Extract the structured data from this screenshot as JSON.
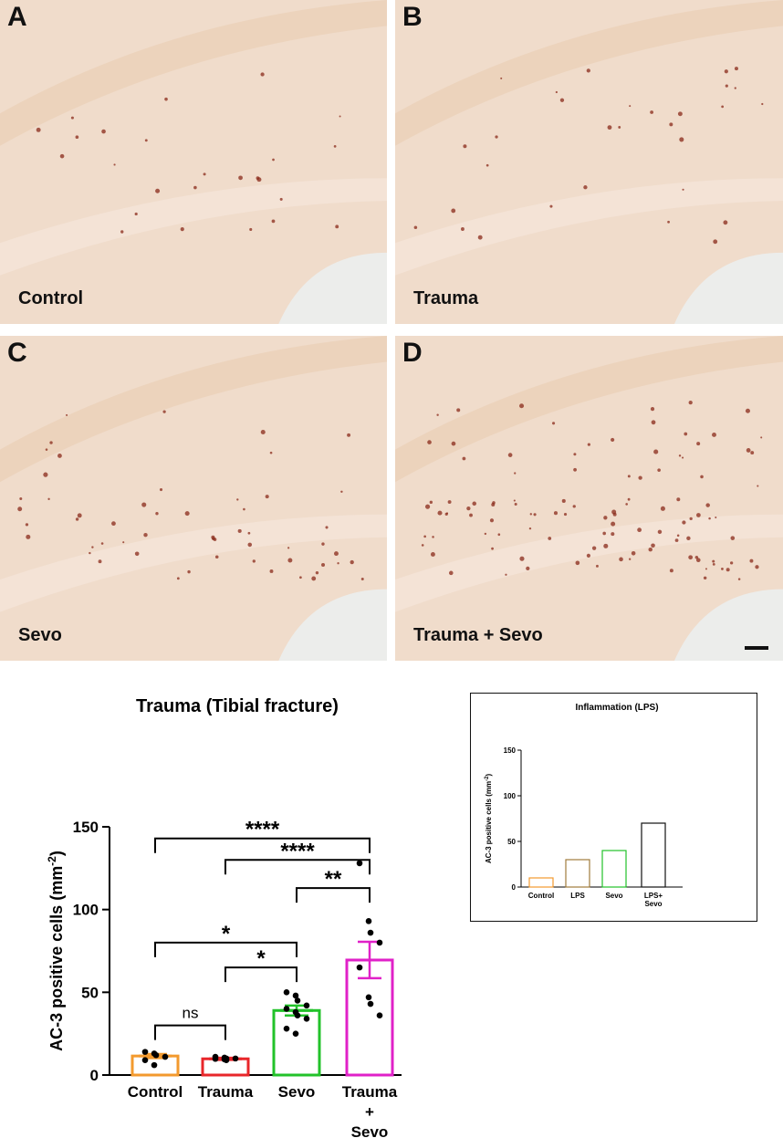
{
  "panels": [
    {
      "letter": "A",
      "label": "Control"
    },
    {
      "letter": "B",
      "label": "Trauma"
    },
    {
      "letter": "C",
      "label": "Sevo"
    },
    {
      "letter": "D",
      "label": "Trauma + Sevo"
    }
  ],
  "colors": {
    "tissue_base": "#f0dccb",
    "stain": "#8a2a1a",
    "control": "#f39a2e",
    "trauma": "#e8262a",
    "sevo": "#22c22a",
    "trauma_sevo": "#e021c8",
    "inset_lps": "#a07b3c"
  },
  "chart_data": [
    {
      "type": "bar",
      "title": "Trauma (Tibial fracture)",
      "ylabel": "AC-3 positive cells (mm",
      "ylabel_superscript": "-2",
      "ylabel_close": ")",
      "ylim": [
        0,
        150
      ],
      "yticks": [
        "0",
        "50",
        "100",
        "150"
      ],
      "categories": [
        {
          "lines": [
            "Control"
          ]
        },
        {
          "lines": [
            "Trauma"
          ]
        },
        {
          "lines": [
            "Sevo"
          ]
        },
        {
          "lines": [
            "Trauma",
            "+",
            "Sevo"
          ]
        }
      ],
      "values": [
        11.5,
        9.8,
        39.0,
        69.5
      ],
      "sem": [
        1.2,
        0.6,
        3.0,
        11.0
      ],
      "points": [
        [
          14,
          13,
          12,
          11,
          9,
          6
        ],
        [
          11,
          10.5,
          10,
          10,
          9.8,
          9.5,
          9
        ],
        [
          50,
          48,
          45,
          42,
          40,
          38,
          36,
          34,
          28,
          25
        ],
        [
          128,
          93,
          86,
          80,
          65,
          47,
          43,
          36
        ]
      ],
      "significance": [
        {
          "from": 0,
          "to": 3,
          "label": "****",
          "y": 143
        },
        {
          "from": 1,
          "to": 3,
          "label": "****",
          "y": 130
        },
        {
          "from": 2,
          "to": 3,
          "label": "**",
          "y": 113
        },
        {
          "from": 0,
          "to": 2,
          "label": "*",
          "y": 80
        },
        {
          "from": 1,
          "to": 2,
          "label": "*",
          "y": 65
        },
        {
          "from": 0,
          "to": 1,
          "label": "ns",
          "y": 30
        }
      ]
    },
    {
      "type": "bar",
      "title": "Inflammation (LPS)",
      "ylabel": "AC-3 positive cells (mm",
      "ylabel_superscript": "-2",
      "ylabel_close": ")",
      "ylim": [
        0,
        150
      ],
      "yticks": [
        "0",
        "50",
        "100",
        "150"
      ],
      "categories": [
        {
          "lines": [
            "Control"
          ]
        },
        {
          "lines": [
            "LPS"
          ]
        },
        {
          "lines": [
            "Sevo"
          ]
        },
        {
          "lines": [
            "LPS+",
            "Sevo"
          ]
        }
      ],
      "values": [
        10,
        30,
        40,
        70
      ]
    }
  ]
}
